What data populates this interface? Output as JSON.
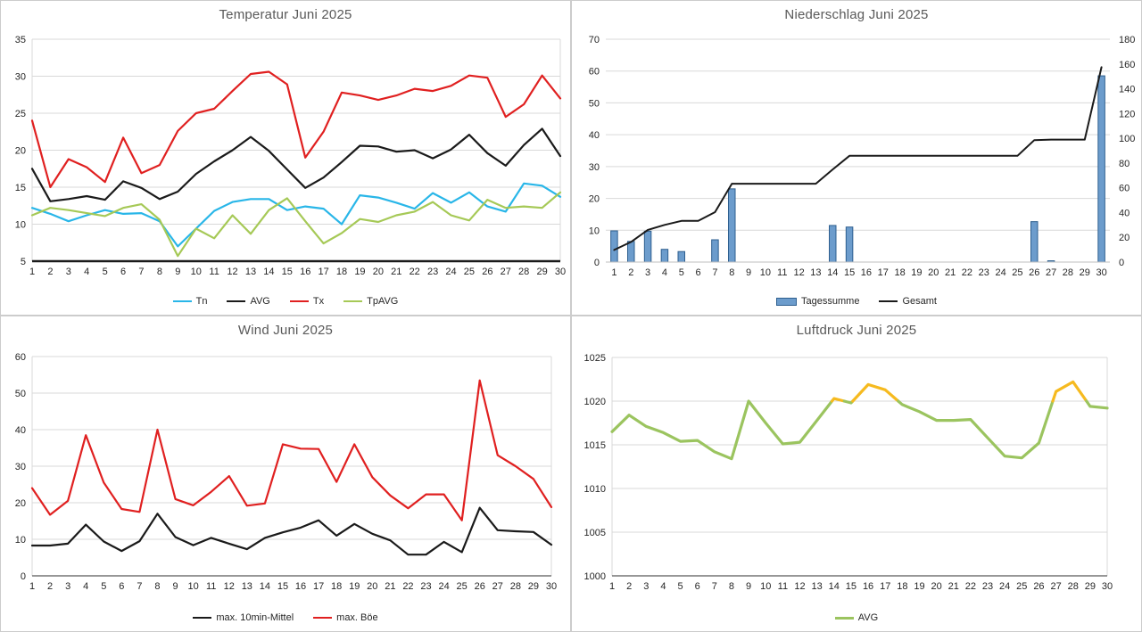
{
  "page": {
    "background": "#ffffff",
    "title_color": "#595959",
    "gridline_color": "#d9d9d9"
  },
  "days": [
    "1",
    "2",
    "3",
    "4",
    "5",
    "6",
    "7",
    "8",
    "9",
    "10",
    "11",
    "12",
    "13",
    "14",
    "15",
    "16",
    "17",
    "18",
    "19",
    "20",
    "21",
    "22",
    "23",
    "24",
    "25",
    "26",
    "27",
    "28",
    "29",
    "30"
  ],
  "chart_data": [
    {
      "id": "temperatur",
      "type": "line",
      "title": "Temperatur Juni 2025",
      "xlabel": "",
      "ylabel": "",
      "ylim": [
        5,
        35
      ],
      "yticks": [
        5,
        10,
        15,
        20,
        25,
        30,
        35
      ],
      "legend_position": "bottom",
      "series": [
        {
          "name": "Tn",
          "kind": "line",
          "color": "#29B6E8",
          "values": [
            12.2,
            11.4,
            10.4,
            11.2,
            11.9,
            11.4,
            11.5,
            10.4,
            7.0,
            9.4,
            11.8,
            13.0,
            13.4,
            13.4,
            11.9,
            12.4,
            12.1,
            10.0,
            13.9,
            13.6,
            12.9,
            12.1,
            14.2,
            12.9,
            14.3,
            12.4,
            11.7,
            15.5,
            15.2,
            13.7
          ]
        },
        {
          "name": "AVG",
          "kind": "line",
          "color": "#1A1A1A",
          "values": [
            17.5,
            13.1,
            13.4,
            13.8,
            13.3,
            15.8,
            14.9,
            13.4,
            14.4,
            16.8,
            18.5,
            20.0,
            21.8,
            19.9,
            17.4,
            14.9,
            16.3,
            18.4,
            20.6,
            20.5,
            19.8,
            20.0,
            18.9,
            20.1,
            22.1,
            19.6,
            17.9,
            20.7,
            22.9,
            19.2
          ]
        },
        {
          "name": "Tx",
          "kind": "line",
          "color": "#E02020",
          "values": [
            24.0,
            15.0,
            18.8,
            17.7,
            15.7,
            21.7,
            16.9,
            18.0,
            22.6,
            25.0,
            25.6,
            28.0,
            30.3,
            30.6,
            28.9,
            19.0,
            22.5,
            27.8,
            27.4,
            26.8,
            27.4,
            28.3,
            28.0,
            28.7,
            30.1,
            29.8,
            24.5,
            26.2,
            30.1,
            27.0
          ]
        },
        {
          "name": "TpAVG",
          "kind": "line",
          "color": "#A6C957",
          "values": [
            11.2,
            12.2,
            11.9,
            11.5,
            11.1,
            12.2,
            12.7,
            10.6,
            5.7,
            9.4,
            8.1,
            11.2,
            8.7,
            11.9,
            13.5,
            10.4,
            7.4,
            8.8,
            10.7,
            10.3,
            11.2,
            11.7,
            13.0,
            11.2,
            10.5,
            13.3,
            12.2,
            12.4,
            12.2,
            14.3
          ]
        }
      ]
    },
    {
      "id": "niederschlag",
      "type": "combo",
      "title": "Niederschlag Juni 2025",
      "xlabel": "",
      "ylabel_left": "",
      "ylabel_right": "",
      "ylim": [
        0,
        70
      ],
      "yticks": [
        0,
        10,
        20,
        30,
        40,
        50,
        60,
        70
      ],
      "ylim_right": [
        0,
        180
      ],
      "yticks_right": [
        0,
        20,
        40,
        60,
        80,
        100,
        120,
        140,
        160,
        180
      ],
      "left_axis_label_color": "#7092C7",
      "legend_position": "bottom",
      "series": [
        {
          "name": "Tagessumme",
          "kind": "bar",
          "axis": "left",
          "fill": "#6C9CCC",
          "stroke": "#2E5F8F",
          "values": [
            9.8,
            6.5,
            9.7,
            4.0,
            3.3,
            0,
            7.0,
            23.0,
            0,
            0,
            0,
            0,
            0,
            11.5,
            11.0,
            0,
            0,
            0,
            0,
            0,
            0,
            0,
            0,
            0,
            0,
            12.7,
            0.4,
            0,
            0,
            58.5
          ]
        },
        {
          "name": "Gesamt",
          "kind": "line",
          "axis": "right",
          "color": "#1A1A1A",
          "values": [
            9.8,
            16.3,
            26.0,
            30.0,
            33.3,
            33.3,
            40.3,
            63.3,
            63.3,
            63.3,
            63.3,
            63.3,
            63.3,
            74.8,
            85.8,
            85.8,
            85.8,
            85.8,
            85.8,
            85.8,
            85.8,
            85.8,
            85.8,
            85.8,
            85.8,
            98.5,
            98.9,
            98.9,
            98.9,
            157.4
          ]
        }
      ]
    },
    {
      "id": "wind",
      "type": "line",
      "title": "Wind Juni 2025",
      "xlabel": "",
      "ylabel": "",
      "ylim": [
        0,
        60
      ],
      "yticks": [
        0,
        10,
        20,
        30,
        40,
        50,
        60
      ],
      "legend_position": "bottom",
      "series": [
        {
          "name": "max. 10min-Mittel",
          "kind": "line",
          "color": "#1A1A1A",
          "values": [
            8.3,
            8.3,
            8.8,
            14.0,
            9.4,
            6.8,
            9.5,
            17.0,
            10.6,
            8.4,
            10.4,
            8.8,
            7.3,
            10.4,
            11.9,
            13.2,
            15.2,
            11.0,
            14.2,
            11.5,
            9.7,
            5.8,
            5.8,
            9.3,
            6.5,
            18.6,
            12.5,
            12.2,
            12.0,
            8.5
          ]
        },
        {
          "name": "max. Böe",
          "kind": "line",
          "color": "#E02020",
          "values": [
            24.0,
            16.7,
            20.5,
            38.5,
            25.5,
            18.3,
            17.5,
            40.0,
            21.0,
            19.3,
            23.0,
            27.3,
            19.2,
            19.8,
            36.0,
            34.8,
            34.7,
            25.7,
            36.0,
            27.0,
            22.0,
            18.5,
            22.3,
            22.3,
            15.2,
            53.5,
            33.0,
            30.0,
            26.5,
            18.8
          ]
        }
      ]
    },
    {
      "id": "luftdruck",
      "type": "line",
      "title": "Luftdruck Juni 2025",
      "xlabel": "",
      "ylabel": "",
      "ylim": [
        1000,
        1025
      ],
      "yticks": [
        1000,
        1005,
        1010,
        1015,
        1020,
        1025
      ],
      "legend_position": "bottom",
      "series": [
        {
          "name": "AVG",
          "kind": "line",
          "color": "#9BC45F",
          "threshold_value": 1020,
          "above_color": "#F6BA1F",
          "values": [
            1016.5,
            1018.4,
            1017.1,
            1016.4,
            1015.4,
            1015.5,
            1014.2,
            1013.4,
            1020.0,
            1017.5,
            1015.1,
            1015.3,
            1017.8,
            1020.3,
            1019.8,
            1021.9,
            1021.3,
            1019.6,
            1018.8,
            1017.8,
            1017.8,
            1017.9,
            1015.8,
            1013.7,
            1013.5,
            1015.2,
            1021.1,
            1022.2,
            1019.4,
            1019.2
          ]
        }
      ]
    }
  ]
}
